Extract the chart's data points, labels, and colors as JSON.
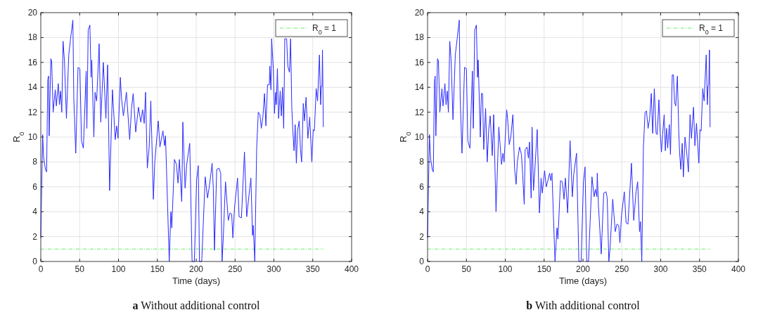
{
  "chart_data": [
    {
      "type": "line",
      "title": "a Without additional control",
      "xlabel": "Time (days)",
      "ylabel": "R$_{0}$",
      "xlim": [
        0,
        400
      ],
      "xticks": [
        0,
        50,
        100,
        150,
        200,
        250,
        300,
        350,
        400
      ],
      "ylim": [
        0,
        20
      ],
      "yticks": [
        0,
        2,
        4,
        6,
        8,
        10,
        12,
        14,
        16,
        18,
        20
      ],
      "grid": true,
      "legend": "top right",
      "x": [
        0,
        2.4,
        3.6,
        6,
        7.5,
        9,
        10,
        10.8,
        12.9,
        14,
        15.9,
        18.6,
        20,
        22.5,
        24,
        25.4,
        27,
        28.7,
        30.5,
        33,
        36,
        38.3,
        41.3,
        42.5,
        45,
        47.9,
        50.3,
        52.4,
        54.8,
        58.4,
        59.3,
        61,
        63.2,
        64.7,
        65.6,
        68.3,
        69.8,
        71.9,
        75.1,
        77.2,
        80.5,
        83.8,
        86,
        88.6,
        92.2,
        95.8,
        97.6,
        99.4,
        102.4,
        103.9,
        106.3,
        110.2,
        114.4,
        116.8,
        118.9,
        122.2,
        125.7,
        128.7,
        131,
        133.1,
        134.8,
        137.1,
        139.5,
        141.6,
        144.9,
        146.7,
        151.2,
        153.3,
        157.2,
        159.3,
        160.5,
        165.3,
        167.4,
        168.6,
        172,
        174.6,
        176.6,
        178.4,
        181.4,
        182.8,
        185.7,
        187.8,
        191.7,
        194.7,
        197.6,
        200.6,
        202.7,
        204.2,
        207.1,
        211.6,
        214.6,
        216.6,
        219,
        220.5,
        222,
        223.5,
        226.4,
        229.4,
        231.5,
        233.3,
        234.7,
        237.7,
        241.3,
        243.4,
        245.7,
        247.2,
        249.3,
        253.2,
        255.2,
        258.2,
        262.1,
        265,
        268.9,
        270.4,
        272.5,
        273.4,
        275.4,
        277.8,
        279.9,
        282,
        283.8,
        285.8,
        287.9,
        289.7,
        291.8,
        294.1,
        294.7,
        296.2,
        297.1,
        299.2,
        300.7,
        302.2,
        303.1,
        304.5,
        306,
        308.1,
        309.6,
        311.1,
        312.6,
        314,
        316.4,
        317.9,
        320,
        321.5,
        323,
        324.4,
        325.9,
        327.4,
        328.9,
        330.4,
        332.5,
        334.2,
        335.7,
        337.8,
        339.3,
        341.4,
        343.7,
        346.1,
        348.8,
        350.6,
        352.1,
        354.4,
        356.2,
        358.6,
        360.1,
        361,
        361.9,
        362.5,
        363.6
      ],
      "series": [
        {
          "color": "#2b2bff",
          "values": [
            1.9,
            10.2,
            8.4,
            7.4,
            7.2,
            14.6,
            14.9,
            10.1,
            16.3,
            16.1,
            12.0,
            13.8,
            12.5,
            14.3,
            12.6,
            13.7,
            12.0,
            17.7,
            16.1,
            11.5,
            16.6,
            17.9,
            19.4,
            13.1,
            8.7,
            15.6,
            15.5,
            9.7,
            9.1,
            15.3,
            10.7,
            18.6,
            19.0,
            14.8,
            16.2,
            10.0,
            13.6,
            12.9,
            17.5,
            11.2,
            16.0,
            11.5,
            15.8,
            5.7,
            13.8,
            9.8,
            10.9,
            9.9,
            14.8,
            13.1,
            11.7,
            13.6,
            9.8,
            12.3,
            13.5,
            10.4,
            12.4,
            11.2,
            12.2,
            11.1,
            13.6,
            7.5,
            9.2,
            12.9,
            5.0,
            8.0,
            11.3,
            9.2,
            10.5,
            9.3,
            10.1,
            0,
            4.0,
            2.7,
            8.2,
            7.8,
            6.3,
            8.2,
            4.8,
            11.2,
            5.9,
            7.8,
            9.5,
            0,
            0,
            6.6,
            7.7,
            0,
            0,
            6.8,
            5.1,
            5.9,
            7.1,
            7.9,
            5.9,
            0.9,
            7.4,
            7.5,
            7.1,
            0,
            1.7,
            6.4,
            3.3,
            3.9,
            3.8,
            1.9,
            4.3,
            6.7,
            3.6,
            3.5,
            8.8,
            3.6,
            5.9,
            6.7,
            2.1,
            2.9,
            0,
            9.1,
            12.0,
            11.8,
            10.7,
            11.6,
            13.5,
            10.9,
            14.2,
            14.2,
            15.7,
            13.8,
            17.9,
            15.5,
            11.9,
            13.6,
            12.6,
            15.5,
            11.5,
            13.7,
            11.7,
            14.0,
            10.7,
            17.9,
            17.9,
            15.7,
            15.2,
            17.9,
            12.4,
            10.5,
            8.9,
            11.0,
            7.9,
            10.5,
            11.3,
            9.0,
            8.0,
            12.7,
            11.3,
            13.2,
            9.9,
            11.6,
            8.0,
            10.6,
            10.5,
            13.9,
            12.9,
            16.6,
            12.6,
            14.1,
            14.1,
            17.0,
            10.8
          ]
        }
      ],
      "ref_lines": [
        {
          "axis": "y",
          "value": 1,
          "label": "R$_{0}$ = 1",
          "color": "#66ee66",
          "line_style": "dashed"
        }
      ]
    },
    {
      "type": "line",
      "title": "b With additional control",
      "xlabel": "Time (days)",
      "ylabel": "R$_{0}$",
      "xlim": [
        0,
        400
      ],
      "xticks": [
        0,
        50,
        100,
        150,
        200,
        250,
        300,
        350,
        400
      ],
      "ylim": [
        0,
        20
      ],
      "yticks": [
        0,
        2,
        4,
        6,
        8,
        10,
        12,
        14,
        16,
        18,
        20
      ],
      "grid": true,
      "legend": "top right",
      "x": [
        0,
        2.4,
        3.9,
        6,
        7.4,
        8.9,
        9.8,
        10.7,
        12.8,
        14,
        15.8,
        18.5,
        19.9,
        22.3,
        23.8,
        25.3,
        26.8,
        28.6,
        30.4,
        32.7,
        35.7,
        38.1,
        40.8,
        42,
        44.3,
        47.6,
        50,
        51.8,
        54.5,
        57.7,
        58.9,
        60.7,
        62.8,
        64.3,
        65.2,
        67.9,
        69.3,
        70.8,
        72.3,
        74.7,
        76.8,
        78.6,
        80.6,
        83.3,
        85.1,
        88.1,
        91.7,
        95.2,
        97,
        98.5,
        101.8,
        103,
        105.1,
        107.1,
        109.8,
        111.9,
        114,
        115.5,
        118.4,
        120.8,
        122.3,
        124.4,
        125.6,
        128,
        129.8,
        131.2,
        133.3,
        134.5,
        136.3,
        138.1,
        141.1,
        144,
        146.1,
        147.6,
        150.6,
        152.7,
        154.8,
        157.1,
        158.6,
        160.1,
        164,
        166.6,
        167.8,
        171.1,
        173.5,
        175.6,
        177.4,
        180.3,
        183.4,
        186.3,
        188.1,
        191.7,
        194.7,
        197.6,
        200.6,
        202.7,
        204.8,
        207.1,
        211.6,
        214.3,
        216,
        217.8,
        218.4,
        219.9,
        223.5,
        226.7,
        229.7,
        231.2,
        233.3,
        235,
        238.3,
        241.6,
        243.7,
        246,
        247.5,
        249.6,
        253.2,
        255.5,
        257.9,
        262.4,
        265.3,
        268.3,
        270.4,
        272.8,
        274,
        275.7,
        277.8,
        279.9,
        281.7,
        283.8,
        285.8,
        287.9,
        289.7,
        291.8,
        294.1,
        295.6,
        297.7,
        299.2,
        301,
        302.5,
        304.5,
        306,
        307.5,
        309,
        311.1,
        312.6,
        314.9,
        316.4,
        317.9,
        319.4,
        321.5,
        323.3,
        324.4,
        325.9,
        327.7,
        329.2,
        331.3,
        333.6,
        335.7,
        337.8,
        339.6,
        342.3,
        344,
        346.1,
        349.1,
        350.6,
        352.1,
        354.1,
        355.9,
        358.6,
        360.1,
        361,
        361.9,
        362.8,
        363.6
      ],
      "series": [
        {
          "color": "#2b2bff",
          "values": [
            1.9,
            10.2,
            8.3,
            7.4,
            7.2,
            14.5,
            14.9,
            10.1,
            16.3,
            16.1,
            12.0,
            13.9,
            12.5,
            14.3,
            12.6,
            13.7,
            12.0,
            17.7,
            16.1,
            11.4,
            16.6,
            17.9,
            19.4,
            13.1,
            8.7,
            15.6,
            15.5,
            9.7,
            9.1,
            15.3,
            10.7,
            18.6,
            19.0,
            14.8,
            16.2,
            10.0,
            13.5,
            13.5,
            9.0,
            12.3,
            8.0,
            10.5,
            11.7,
            8.5,
            11.8,
            4.0,
            10.8,
            7.8,
            8.7,
            8.0,
            12.2,
            11.5,
            9.4,
            10.0,
            11.8,
            7.5,
            6.2,
            8.0,
            9.2,
            8.6,
            7.1,
            4.6,
            9.0,
            9.2,
            8.3,
            9.6,
            5.1,
            10.8,
            5.7,
            7.4,
            10.6,
            3.9,
            6.7,
            5.5,
            7.3,
            6.0,
            6.5,
            7.1,
            6.5,
            7.1,
            0,
            2.7,
            1.8,
            6.5,
            6.4,
            5.0,
            6.7,
            3.9,
            9.7,
            5.2,
            7.0,
            8.7,
            0,
            0,
            6.4,
            7.6,
            0,
            0,
            6.8,
            5.2,
            5.8,
            5.2,
            7.1,
            4.5,
            0.6,
            5.5,
            5.6,
            5.1,
            0,
            1.2,
            5.0,
            2.4,
            3.0,
            2.9,
            1.5,
            3.7,
            5.6,
            3.1,
            3.0,
            7.9,
            3.3,
            5.6,
            6.4,
            2.4,
            3.2,
            0,
            9.2,
            12.0,
            12.1,
            10.7,
            11.5,
            13.5,
            10.3,
            13.9,
            10.3,
            10.2,
            13.0,
            10.5,
            8.8,
            10.2,
            11.8,
            8.9,
            10.7,
            9.1,
            11.0,
            8.6,
            15.0,
            15.0,
            12.8,
            12.5,
            14.9,
            10.4,
            8.7,
            7.4,
            9.5,
            6.8,
            10.0,
            8.7,
            7.2,
            11.8,
            9.9,
            12.4,
            9.3,
            11.1,
            7.9,
            10.6,
            10.5,
            13.9,
            12.9,
            16.6,
            12.6,
            14.1,
            14.2,
            17.0,
            10.8
          ]
        }
      ],
      "ref_lines": [
        {
          "axis": "y",
          "value": 1,
          "label": "R$_{0}$ = 1",
          "color": "#66ee66",
          "line_style": "dashed"
        }
      ]
    }
  ]
}
